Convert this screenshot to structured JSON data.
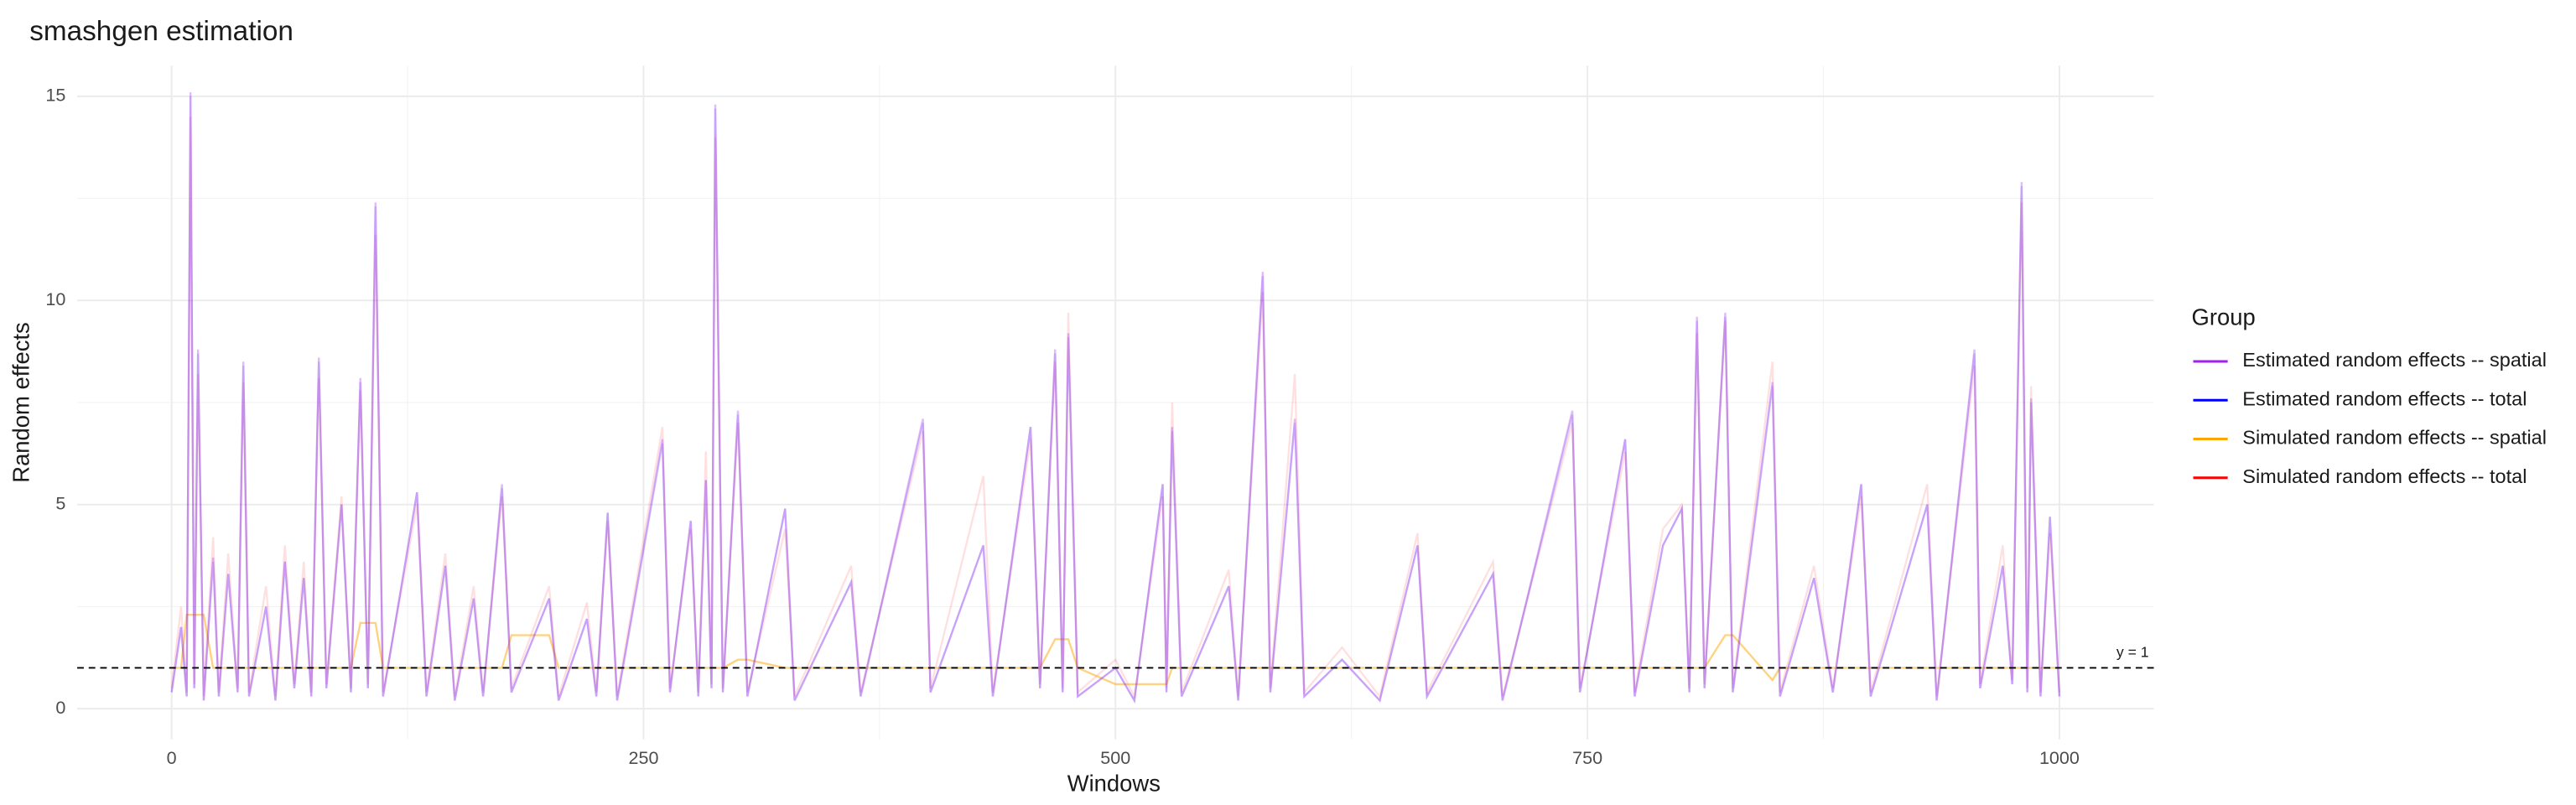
{
  "chart_data": {
    "type": "line",
    "title": "smashgen estimation",
    "xlabel": "Windows",
    "ylabel": "Random effects",
    "legend_title": "Group",
    "legend": "right",
    "grid": true,
    "xlim": [
      -50,
      1050
    ],
    "ylim": [
      -0.75,
      15.75
    ],
    "xticks": [
      0,
      250,
      500,
      750,
      1000
    ],
    "yticks": [
      0,
      5,
      10,
      15
    ],
    "xminor": [
      125,
      375,
      625,
      875
    ],
    "yminor": [
      2.5,
      7.5,
      12.5
    ],
    "hline": {
      "value": 1,
      "label": "y = 1"
    },
    "x": [
      0,
      5,
      8,
      10,
      12,
      14,
      17,
      22,
      25,
      30,
      35,
      38,
      41,
      50,
      55,
      60,
      65,
      70,
      74,
      78,
      82,
      90,
      95,
      100,
      104,
      108,
      112,
      130,
      135,
      145,
      150,
      160,
      165,
      175,
      180,
      200,
      205,
      220,
      225,
      231,
      236,
      260,
      264,
      275,
      279,
      283,
      286,
      288,
      292,
      300,
      305,
      325,
      330,
      360,
      365,
      398,
      402,
      430,
      435,
      455,
      460,
      468,
      472,
      475,
      480,
      500,
      510,
      525,
      527,
      530,
      535,
      560,
      565,
      578,
      582,
      595,
      600,
      620,
      640,
      660,
      665,
      700,
      705,
      742,
      746,
      770,
      775,
      790,
      800,
      804,
      808,
      812,
      823,
      827,
      848,
      852,
      870,
      880,
      895,
      900,
      930,
      935,
      955,
      958,
      970,
      975,
      980,
      983,
      985,
      990,
      995,
      1000
    ],
    "series": [
      {
        "name": "Estimated random effects -- spatial",
        "color": "#a020f0",
        "alpha": 0.3,
        "values": [
          0.4,
          2.0,
          0.3,
          15.1,
          0.5,
          8.8,
          0.2,
          3.7,
          0.3,
          3.3,
          0.4,
          8.5,
          0.3,
          2.5,
          0.2,
          3.6,
          0.5,
          3.2,
          0.3,
          8.6,
          0.5,
          5.0,
          0.4,
          8.1,
          0.5,
          12.4,
          0.3,
          5.3,
          0.3,
          3.5,
          0.2,
          2.7,
          0.3,
          5.5,
          0.4,
          2.7,
          0.2,
          2.2,
          0.3,
          4.8,
          0.2,
          6.6,
          0.4,
          4.6,
          0.3,
          5.6,
          0.5,
          14.8,
          0.4,
          7.3,
          0.3,
          4.9,
          0.2,
          3.1,
          0.3,
          7.1,
          0.4,
          4.0,
          0.3,
          6.9,
          0.5,
          8.8,
          0.4,
          9.2,
          0.3,
          1.0,
          0.2,
          5.5,
          0.4,
          6.9,
          0.3,
          3.0,
          0.2,
          10.7,
          0.4,
          7.1,
          0.3,
          1.2,
          0.2,
          4.0,
          0.3,
          3.3,
          0.2,
          7.3,
          0.4,
          6.6,
          0.3,
          4.0,
          4.9,
          0.4,
          9.6,
          0.5,
          9.7,
          0.4,
          8.0,
          0.3,
          3.2,
          0.4,
          5.5,
          0.3,
          5.0,
          0.2,
          8.8,
          0.5,
          3.5,
          0.6,
          12.9,
          0.4,
          7.6,
          0.3,
          4.7,
          0.3
        ]
      },
      {
        "name": "Estimated random effects -- total",
        "color": "#0000ff",
        "alpha": 0.15,
        "values": [
          0.4,
          2.0,
          0.3,
          15.0,
          0.5,
          8.7,
          0.2,
          3.6,
          0.3,
          3.3,
          0.4,
          8.4,
          0.3,
          2.5,
          0.2,
          3.6,
          0.5,
          3.2,
          0.3,
          8.5,
          0.5,
          5.0,
          0.4,
          8.0,
          0.5,
          12.3,
          0.3,
          5.3,
          0.3,
          3.5,
          0.2,
          2.7,
          0.3,
          5.4,
          0.4,
          2.7,
          0.2,
          2.2,
          0.3,
          4.8,
          0.2,
          6.5,
          0.4,
          4.6,
          0.3,
          5.6,
          0.5,
          14.7,
          0.4,
          7.2,
          0.3,
          4.9,
          0.2,
          3.1,
          0.3,
          7.0,
          0.4,
          4.0,
          0.3,
          6.9,
          0.5,
          8.7,
          0.4,
          9.1,
          0.3,
          1.0,
          0.2,
          5.5,
          0.4,
          6.8,
          0.3,
          3.0,
          0.2,
          10.6,
          0.4,
          7.0,
          0.3,
          1.2,
          0.2,
          4.0,
          0.3,
          3.3,
          0.2,
          7.2,
          0.4,
          6.6,
          0.3,
          4.0,
          4.9,
          0.4,
          9.5,
          0.5,
          9.6,
          0.4,
          7.9,
          0.3,
          3.2,
          0.4,
          5.5,
          0.3,
          5.0,
          0.2,
          8.7,
          0.5,
          3.5,
          0.6,
          12.8,
          0.4,
          7.5,
          0.3,
          4.7,
          0.3
        ]
      },
      {
        "name": "Simulated random effects -- spatial",
        "color": "#ffa500",
        "alpha": 0.5,
        "values": [
          1.0,
          1.0,
          2.3,
          2.3,
          2.3,
          2.3,
          2.3,
          1.0,
          1.0,
          1.0,
          1.0,
          1.0,
          1.0,
          1.0,
          1.0,
          1.0,
          1.0,
          1.0,
          1.0,
          1.0,
          1.0,
          1.0,
          1.0,
          2.1,
          2.1,
          2.1,
          1.0,
          1.0,
          1.0,
          1.0,
          1.0,
          1.0,
          1.0,
          1.0,
          1.8,
          1.8,
          1.0,
          1.0,
          1.0,
          1.0,
          1.0,
          1.0,
          1.0,
          1.0,
          1.0,
          1.0,
          1.0,
          1.0,
          1.0,
          1.2,
          1.2,
          1.0,
          1.0,
          1.0,
          1.0,
          1.0,
          1.0,
          1.0,
          1.0,
          1.0,
          1.0,
          1.7,
          1.7,
          1.7,
          1.0,
          0.6,
          0.6,
          0.6,
          0.6,
          1.0,
          1.0,
          1.0,
          1.0,
          1.0,
          1.0,
          1.0,
          1.0,
          1.0,
          1.0,
          1.0,
          1.0,
          1.0,
          1.0,
          1.0,
          1.0,
          1.0,
          1.0,
          1.0,
          1.0,
          1.0,
          1.0,
          1.0,
          1.8,
          1.8,
          0.7,
          1.0,
          1.0,
          1.0,
          1.0,
          1.0,
          1.0,
          1.0,
          1.0,
          1.0,
          1.0,
          1.0,
          1.0,
          1.0,
          1.0,
          1.0,
          1.0,
          1.0
        ]
      },
      {
        "name": "Simulated random effects -- total",
        "color": "#ff0000",
        "alpha": 0.12,
        "values": [
          0.5,
          2.5,
          0.4,
          14.5,
          0.6,
          8.2,
          0.3,
          4.2,
          0.4,
          3.8,
          0.5,
          8.0,
          0.4,
          3.0,
          0.3,
          4.0,
          0.6,
          3.6,
          0.4,
          8.1,
          0.6,
          5.2,
          0.5,
          7.8,
          0.6,
          11.6,
          0.4,
          5.0,
          0.4,
          3.8,
          0.3,
          3.0,
          0.4,
          5.2,
          0.5,
          3.0,
          0.3,
          2.6,
          0.4,
          4.6,
          0.3,
          6.9,
          0.5,
          4.4,
          0.4,
          6.3,
          0.6,
          14.0,
          0.5,
          7.0,
          0.4,
          4.4,
          0.3,
          3.5,
          0.4,
          6.8,
          0.5,
          5.7,
          0.4,
          6.6,
          0.6,
          8.5,
          0.5,
          9.7,
          0.4,
          1.2,
          0.3,
          5.2,
          0.5,
          7.5,
          0.4,
          3.4,
          0.3,
          10.2,
          0.5,
          8.2,
          0.4,
          1.5,
          0.3,
          4.3,
          0.4,
          3.6,
          0.3,
          7.0,
          0.5,
          6.3,
          0.4,
          4.4,
          5.0,
          0.5,
          9.2,
          0.6,
          9.5,
          0.5,
          8.5,
          0.4,
          3.5,
          0.5,
          5.2,
          0.4,
          5.5,
          0.3,
          8.4,
          0.6,
          4.0,
          0.7,
          12.4,
          0.5,
          7.9,
          0.4,
          4.3,
          0.4
        ]
      }
    ]
  }
}
